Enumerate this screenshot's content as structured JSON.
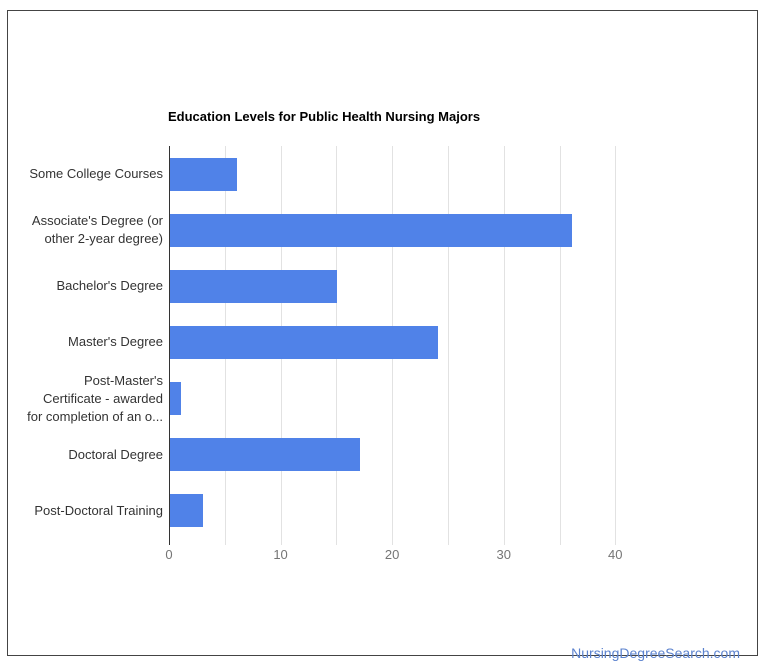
{
  "title": "Education Levels for Public Health Nursing Majors",
  "footer": {
    "link_text": "NursingDegreeSearch.com"
  },
  "colors": {
    "bar": "#5082e8",
    "axis": "#333333",
    "gridline": "#e2e2e2",
    "tick_label": "#757575",
    "category_label": "#333333",
    "link": "#5b82ce",
    "frame_border": "#444444"
  },
  "chart_data": {
    "type": "bar",
    "orientation": "horizontal",
    "title": "Education Levels for Public Health Nursing Majors",
    "categories": [
      "Some College Courses",
      "Associate's Degree (or\nother 2-year degree)",
      "Bachelor's Degree",
      "Master's Degree",
      "Post-Master's\nCertificate - awarded\nfor completion of an o...",
      "Doctoral Degree",
      "Post-Doctoral Training"
    ],
    "values": [
      6,
      36,
      15,
      24,
      1,
      17,
      3
    ],
    "xlabel": "",
    "ylabel": "",
    "xlim": [
      0,
      45.8
    ],
    "x_major_ticks": [
      0,
      10,
      20,
      30,
      40
    ],
    "x_minor_ticks": [
      5,
      15,
      25,
      35
    ],
    "grid": true,
    "legend": "none",
    "bar_color": "#5082e8"
  }
}
